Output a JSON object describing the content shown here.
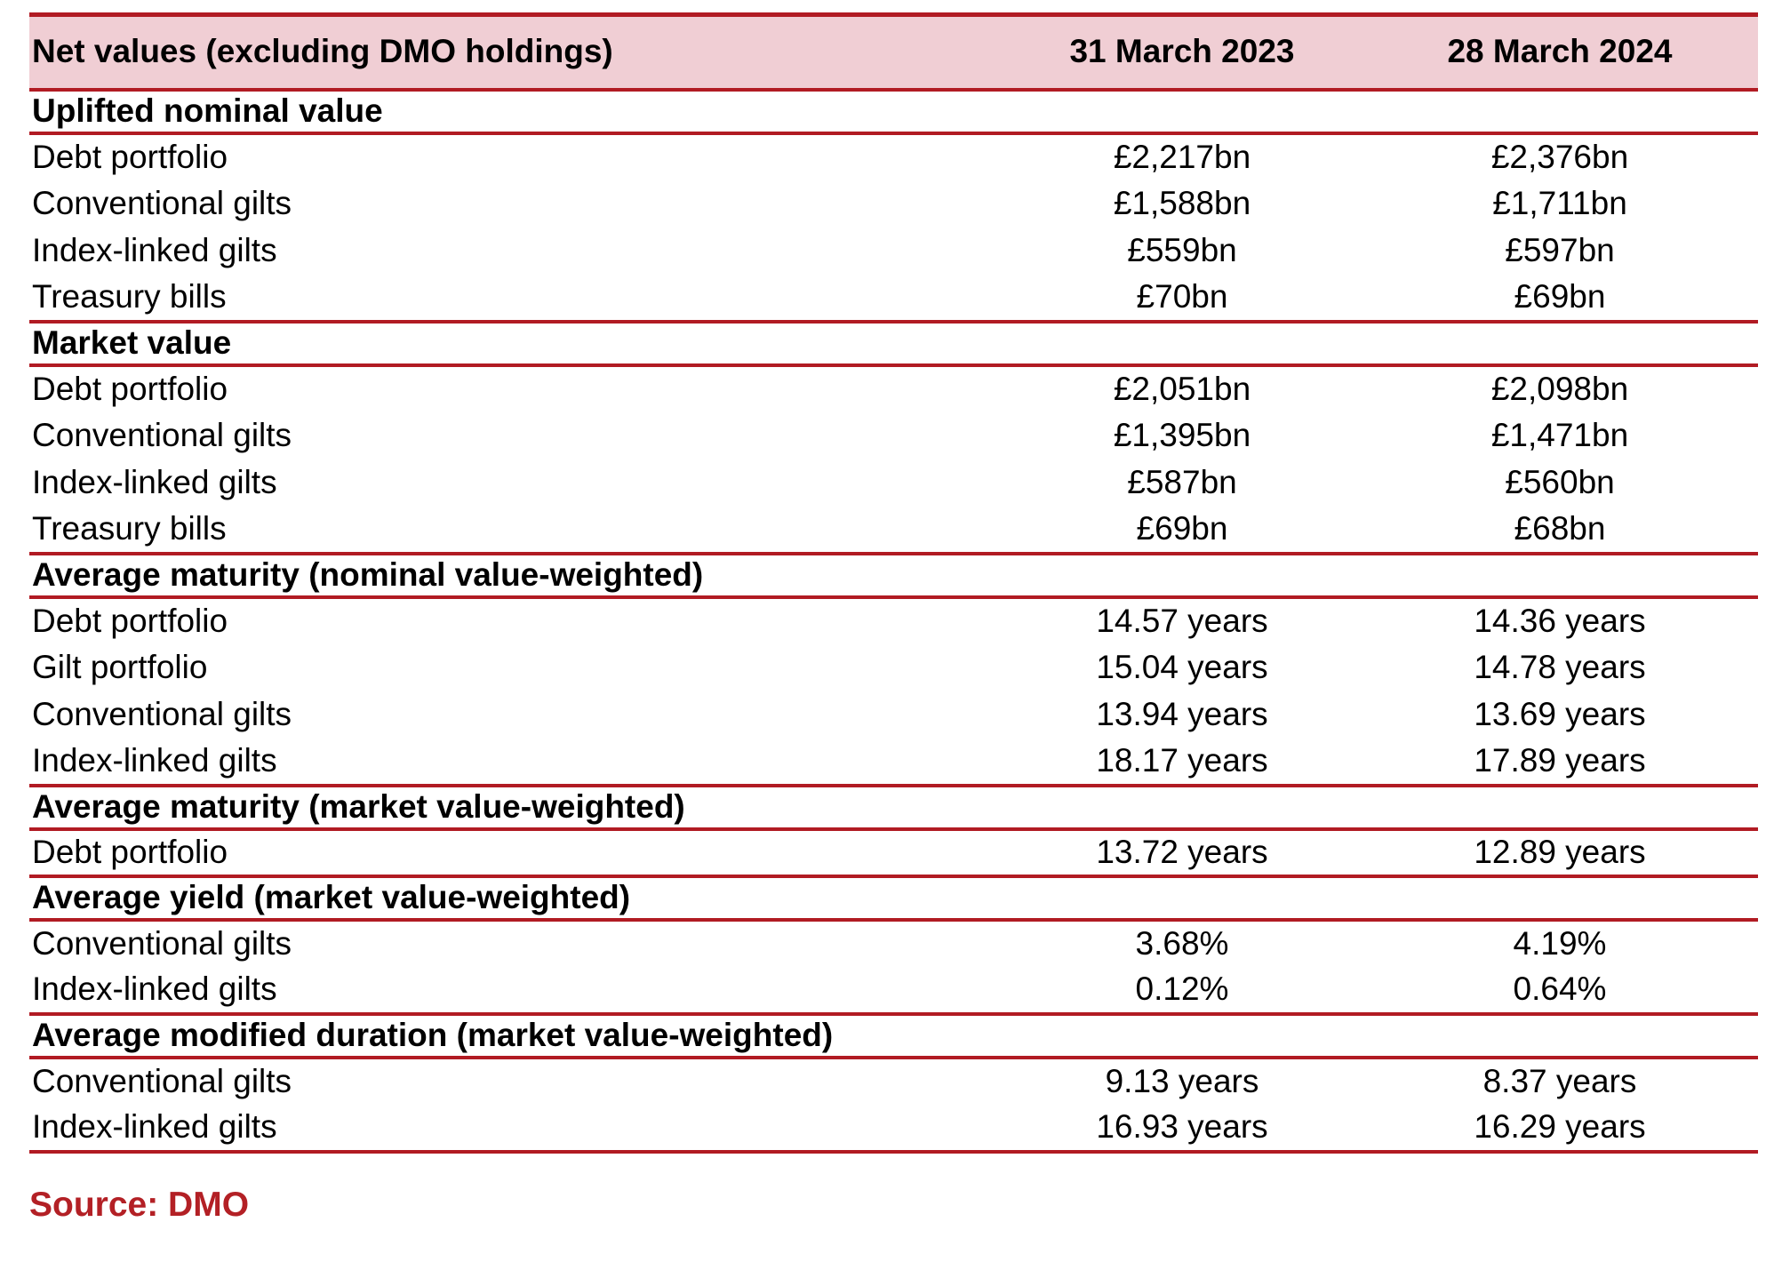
{
  "colors": {
    "header_background": "#F0CED4",
    "rule_red": "#B11B23",
    "source_text_red": "#B32025",
    "body_text": "#000000",
    "page_background": "#FFFFFF"
  },
  "table": {
    "header": {
      "title": "Net values (excluding DMO holdings)",
      "col_2023": "31 March 2023",
      "col_2024": "28 March 2024"
    },
    "sections": [
      {
        "title": "Uplifted nominal value",
        "rows": [
          {
            "label": "Debt portfolio",
            "v2023": "£2,217bn",
            "v2024": "£2,376bn"
          },
          {
            "label": "Conventional gilts",
            "v2023": "£1,588bn",
            "v2024": "£1,711bn"
          },
          {
            "label": "Index-linked gilts",
            "v2023": "£559bn",
            "v2024": "£597bn"
          },
          {
            "label": "Treasury bills",
            "v2023": "£70bn",
            "v2024": "£69bn"
          }
        ]
      },
      {
        "title": "Market value",
        "rows": [
          {
            "label": "Debt portfolio",
            "v2023": "£2,051bn",
            "v2024": "£2,098bn"
          },
          {
            "label": "Conventional gilts",
            "v2023": "£1,395bn",
            "v2024": "£1,471bn"
          },
          {
            "label": "Index-linked gilts",
            "v2023": "£587bn",
            "v2024": "£560bn"
          },
          {
            "label": "Treasury bills",
            "v2023": "£69bn",
            "v2024": "£68bn"
          }
        ]
      },
      {
        "title": "Average maturity (nominal value-weighted)",
        "rows": [
          {
            "label": "Debt portfolio",
            "v2023": "14.57 years",
            "v2024": "14.36 years"
          },
          {
            "label": "Gilt portfolio",
            "v2023": "15.04 years",
            "v2024": "14.78 years"
          },
          {
            "label": "Conventional gilts",
            "v2023": "13.94 years",
            "v2024": "13.69 years"
          },
          {
            "label": "Index-linked gilts",
            "v2023": "18.17 years",
            "v2024": "17.89 years"
          }
        ]
      },
      {
        "title": "Average maturity (market value-weighted)",
        "rows": [
          {
            "label": "Debt portfolio",
            "v2023": "13.72 years",
            "v2024": "12.89 years"
          }
        ]
      },
      {
        "title": "Average yield (market value-weighted)",
        "rows": [
          {
            "label": "Conventional gilts",
            "v2023": "3.68%",
            "v2024": "4.19%"
          },
          {
            "label": "Index-linked gilts",
            "v2023": "0.12%",
            "v2024": "0.64%"
          }
        ]
      },
      {
        "title": "Average modified duration (market value-weighted)",
        "rows": [
          {
            "label": "Conventional gilts",
            "v2023": "9.13 years",
            "v2024": "8.37 years"
          },
          {
            "label": "Index-linked gilts",
            "v2023": "16.93 years",
            "v2024": "16.29 years"
          }
        ]
      }
    ],
    "source": "Source: DMO"
  }
}
